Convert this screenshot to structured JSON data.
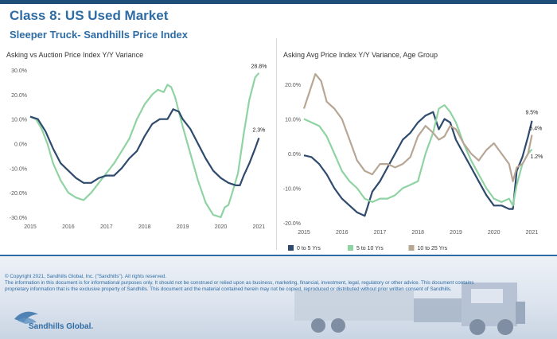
{
  "header": {
    "title": "Class 8:  US Used Market",
    "subtitle": "Sleeper Truck- Sandhills Price Index"
  },
  "footer": {
    "copyright": "© Copyright 2021, Sandhills Global, Inc. (\"Sandhills\"). All rights reserved.",
    "disclaimer": "The information in this document is for informational purposes only.  It should not be construed or relied upon as business, marketing, financial, investment, legal, regulatory or other advice. This document contains proprietary information that is the exclusive property of Sandhills. This document and the material contained herein may not be copied, reproduced or distributed without prior written consent of Sandhills.",
    "logo_text": "Sandhills Global."
  },
  "colors": {
    "brand": "#2e6ca6",
    "series_0_5": "#2e4a6e",
    "series_5_10": "#8fd3a3",
    "series_10_25": "#b8a695"
  },
  "chart_data": [
    {
      "type": "line",
      "title": "Asking vs Auction Price Index Y/Y Variance",
      "xlabel": "",
      "ylabel": "",
      "xlim": [
        2015,
        2021.2
      ],
      "ylim": [
        -30,
        30
      ],
      "yticks": [
        "30.0%",
        "20.0%",
        "10.0%",
        "0.0%",
        "-10.0%",
        "-20.0%",
        "-30.0%"
      ],
      "xticks": [
        "2015",
        "2016",
        "2017",
        "2018",
        "2019",
        "2020",
        "2021"
      ],
      "grid": false,
      "series": [
        {
          "color": "#8fd3a3",
          "end_label": "28.8%",
          "x": [
            2015.0,
            2015.15,
            2015.3,
            2015.45,
            2015.6,
            2015.8,
            2016.0,
            2016.2,
            2016.4,
            2016.6,
            2016.8,
            2017.0,
            2017.2,
            2017.4,
            2017.6,
            2017.8,
            2018.0,
            2018.2,
            2018.35,
            2018.5,
            2018.6,
            2018.7,
            2018.8,
            2018.9,
            2019.0,
            2019.2,
            2019.4,
            2019.6,
            2019.8,
            2020.0,
            2020.1,
            2020.2,
            2020.3,
            2020.45,
            2020.6,
            2020.75,
            2020.9,
            2021.0
          ],
          "y": [
            11,
            10,
            6,
            0,
            -8,
            -15,
            -20,
            -22,
            -23,
            -20,
            -16,
            -12,
            -8,
            -3,
            2,
            10,
            16,
            20,
            22,
            21,
            24,
            23,
            19,
            13,
            7,
            -4,
            -15,
            -24,
            -29,
            -30,
            -26,
            -25,
            -20,
            -12,
            4,
            18,
            27,
            28.8
          ]
        },
        {
          "color": "#2e4a6e",
          "end_label": "2.3%",
          "x": [
            2015.0,
            2015.2,
            2015.4,
            2015.6,
            2015.8,
            2016.0,
            2016.2,
            2016.4,
            2016.6,
            2016.8,
            2017.0,
            2017.2,
            2017.4,
            2017.6,
            2017.8,
            2018.0,
            2018.2,
            2018.4,
            2018.6,
            2018.75,
            2018.9,
            2019.0,
            2019.2,
            2019.4,
            2019.6,
            2019.8,
            2020.0,
            2020.2,
            2020.4,
            2020.5,
            2020.6,
            2020.75,
            2020.9,
            2021.0
          ],
          "y": [
            11,
            10,
            5,
            -2,
            -8,
            -11,
            -14,
            -16,
            -16,
            -14,
            -13,
            -13,
            -10,
            -6,
            -3,
            3,
            8,
            10,
            10,
            14,
            13,
            10,
            6,
            0,
            -6,
            -11,
            -14,
            -16,
            -17,
            -17,
            -13,
            -8,
            -2,
            2.3
          ]
        }
      ]
    },
    {
      "type": "line",
      "title": "Asking Avg Price Index Y/Y Variance, Age Group",
      "xlabel": "",
      "ylabel": "",
      "xlim": [
        2015,
        2021.2
      ],
      "ylim": [
        -20,
        20
      ],
      "yticks": [
        "20.0%",
        "10.0%",
        "0.0%",
        "-10.0%",
        "-20.0%"
      ],
      "xticks": [
        "2015",
        "2016",
        "2017",
        "2018",
        "2019",
        "2020",
        "2021"
      ],
      "grid": false,
      "legend": "bottom",
      "series": [
        {
          "name": "0 to 5 Yrs",
          "color": "#2e4a6e",
          "end_label": "9.5%",
          "x": [
            2015.0,
            2015.2,
            2015.4,
            2015.6,
            2015.8,
            2016.0,
            2016.2,
            2016.4,
            2016.6,
            2016.8,
            2017.0,
            2017.2,
            2017.4,
            2017.6,
            2017.8,
            2018.0,
            2018.2,
            2018.4,
            2018.55,
            2018.7,
            2018.85,
            2019.0,
            2019.2,
            2019.4,
            2019.6,
            2019.8,
            2020.0,
            2020.2,
            2020.4,
            2020.5,
            2020.6,
            2020.75,
            2020.9,
            2021.0
          ],
          "y": [
            -0.5,
            -1,
            -3,
            -6,
            -10,
            -13,
            -15,
            -17,
            -18,
            -11,
            -8,
            -4,
            0,
            4,
            6,
            9,
            11,
            12,
            7,
            10,
            9,
            4,
            0,
            -4,
            -8,
            -12,
            -15,
            -15,
            -16,
            -16,
            -5,
            -1,
            5,
            9.5
          ]
        },
        {
          "name": "5 to 10 Yrs",
          "color": "#8fd3a3",
          "end_label": "1.2%",
          "x": [
            2015.0,
            2015.2,
            2015.4,
            2015.6,
            2015.8,
            2016.0,
            2016.2,
            2016.4,
            2016.6,
            2016.8,
            2017.0,
            2017.2,
            2017.4,
            2017.6,
            2017.8,
            2018.0,
            2018.2,
            2018.4,
            2018.55,
            2018.7,
            2018.85,
            2019.0,
            2019.2,
            2019.4,
            2019.6,
            2019.8,
            2020.0,
            2020.2,
            2020.4,
            2020.5,
            2020.6,
            2020.75,
            2020.9,
            2021.0
          ],
          "y": [
            10,
            9,
            8,
            5,
            0,
            -5,
            -8,
            -10,
            -13,
            -14,
            -13,
            -13,
            -12,
            -10,
            -9,
            -8,
            0,
            6,
            13,
            14,
            12,
            9,
            3,
            -2,
            -6,
            -10,
            -13,
            -14,
            -13,
            -15,
            -9,
            -3,
            0,
            1.2
          ]
        },
        {
          "name": "10 to 25 Yrs",
          "color": "#b8a695",
          "end_label": "5.4%",
          "x": [
            2015.0,
            2015.15,
            2015.3,
            2015.45,
            2015.6,
            2015.8,
            2016.0,
            2016.2,
            2016.4,
            2016.6,
            2016.8,
            2017.0,
            2017.2,
            2017.4,
            2017.6,
            2017.8,
            2018.0,
            2018.2,
            2018.4,
            2018.55,
            2018.7,
            2018.85,
            2019.0,
            2019.2,
            2019.4,
            2019.6,
            2019.8,
            2020.0,
            2020.2,
            2020.4,
            2020.5,
            2020.6,
            2020.75,
            2020.9,
            2021.0
          ],
          "y": [
            13,
            18,
            23,
            21,
            15,
            13,
            10,
            4,
            -2,
            -5,
            -6,
            -3,
            -3,
            -4,
            -3,
            -1,
            5,
            8,
            6,
            4,
            5,
            8,
            7,
            3,
            0,
            -2,
            1,
            3,
            0,
            -3,
            -8,
            -4,
            -3,
            0,
            5.4
          ]
        }
      ]
    }
  ]
}
